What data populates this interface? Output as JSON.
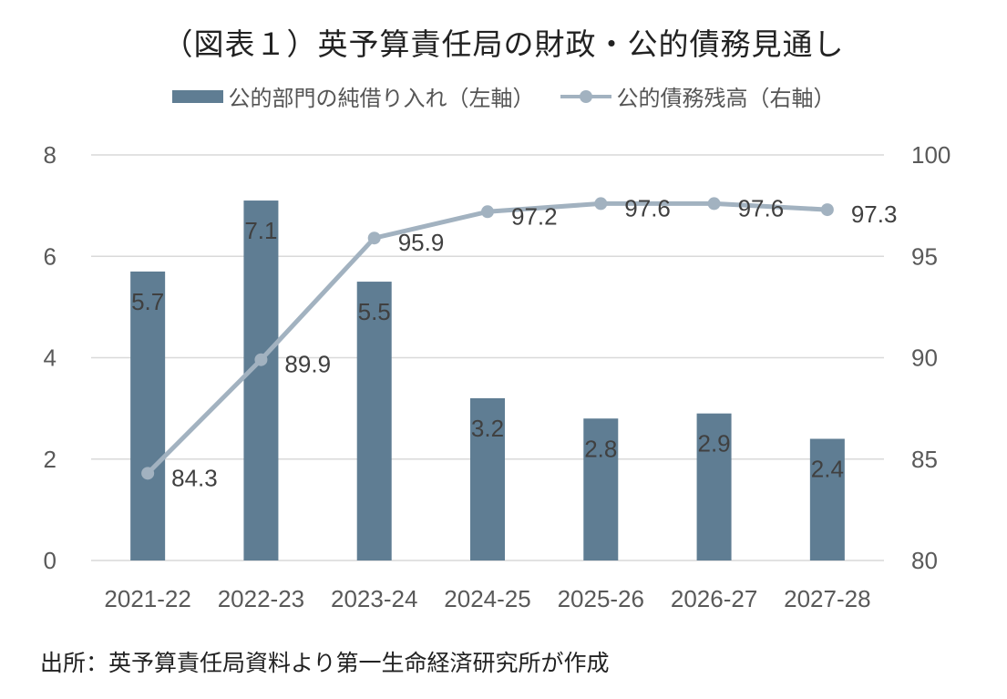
{
  "chart_data": {
    "type": "bar",
    "title": "（図表１）英予算責任局の財政・公的債務見通し",
    "categories": [
      "2021-22",
      "2022-23",
      "2023-24",
      "2024-25",
      "2025-26",
      "2026-27",
      "2027-28"
    ],
    "series": [
      {
        "name": "公的部門の純借り入れ（左軸）",
        "type": "bar",
        "axis": "left",
        "color": "#5f7d93",
        "values": [
          5.7,
          7.1,
          5.5,
          3.2,
          2.8,
          2.9,
          2.4
        ],
        "labels": [
          "5.7",
          "7.1",
          "5.5",
          "3.2",
          "2.8",
          "2.9",
          "2.4"
        ]
      },
      {
        "name": "公的債務残高（右軸）",
        "type": "line",
        "axis": "right",
        "color": "#a2b2c0",
        "values": [
          84.3,
          89.9,
          95.9,
          97.2,
          97.6,
          97.6,
          97.3
        ],
        "labels": [
          "84.3",
          "89.9",
          "95.9",
          "97.2",
          "97.6",
          "97.6",
          "97.3"
        ]
      }
    ],
    "y_left": {
      "min": 0,
      "max": 8,
      "ticks": [
        "0",
        "2",
        "4",
        "6",
        "8"
      ]
    },
    "y_right": {
      "min": 80,
      "max": 100,
      "ticks": [
        "80",
        "85",
        "90",
        "95",
        "100"
      ]
    },
    "grid": true,
    "legend_position": "top"
  },
  "source": "出所：英予算責任局資料より第一生命経済研究所が作成"
}
